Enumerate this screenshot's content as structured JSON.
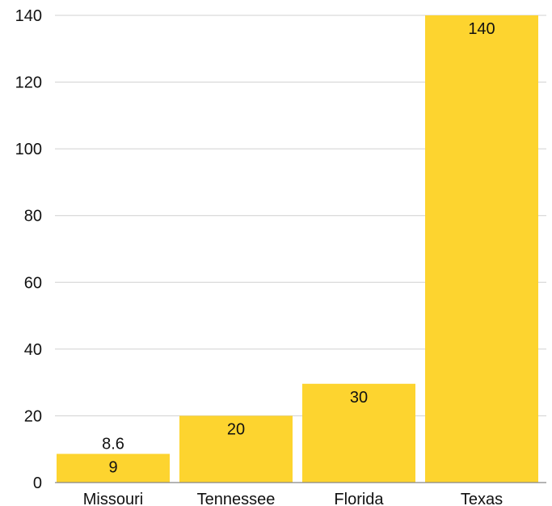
{
  "chart_data": {
    "type": "bar",
    "categories": [
      "Missouri",
      "Tennessee",
      "Florida",
      "Texas"
    ],
    "values": [
      8.6,
      20,
      29.6,
      140
    ],
    "data_labels": [
      "9",
      "20",
      "30",
      "140"
    ],
    "extra_labels": [
      {
        "category": "Missouri",
        "text": "8.6"
      }
    ],
    "title": "",
    "xlabel": "",
    "ylabel": "",
    "ylim": [
      0,
      140
    ],
    "yticks": [
      "0",
      "20",
      "40",
      "60",
      "80",
      "100",
      "120",
      "140"
    ],
    "grid": true,
    "legend": "none",
    "colors": {
      "bar": "#FDD42F",
      "grid": "#D0D0D0",
      "text": "#111111"
    }
  }
}
